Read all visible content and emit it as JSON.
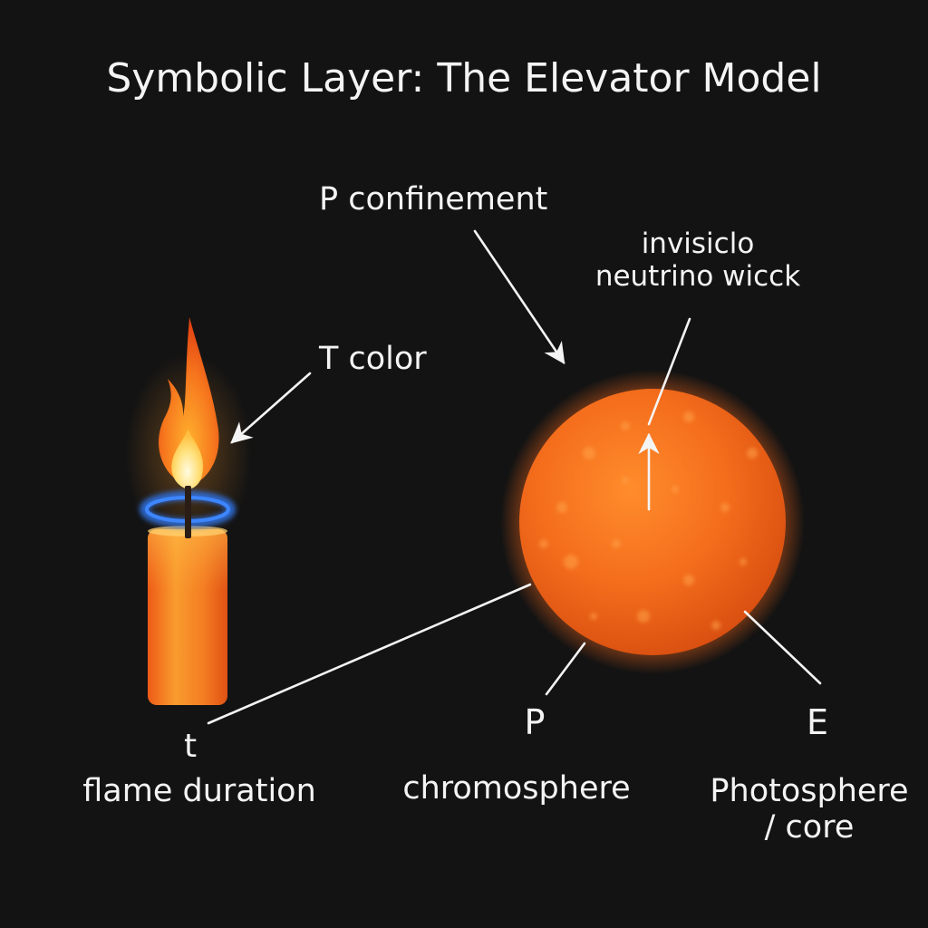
{
  "title": "Symbolic Layer: The Elevator Model",
  "labels": {
    "p_confinement": "P confinement",
    "invisible_line1": "invisiclo",
    "invisible_line2": "neutrino wicck",
    "t_color": "T color",
    "t_symbol": "t",
    "flame_duration": "flame duration",
    "p_symbol": "P",
    "chromosphere": "chromosphere",
    "e_symbol": "E",
    "photosphere_line1": "Photosphere",
    "photosphere_line2": "/ core"
  },
  "colors": {
    "background": "#131313",
    "text": "#f4f4f4",
    "sun": "#f36a18",
    "candle": "#f38a22",
    "flame": "#ff8a1e",
    "blue_ring": "#2f73e8"
  }
}
